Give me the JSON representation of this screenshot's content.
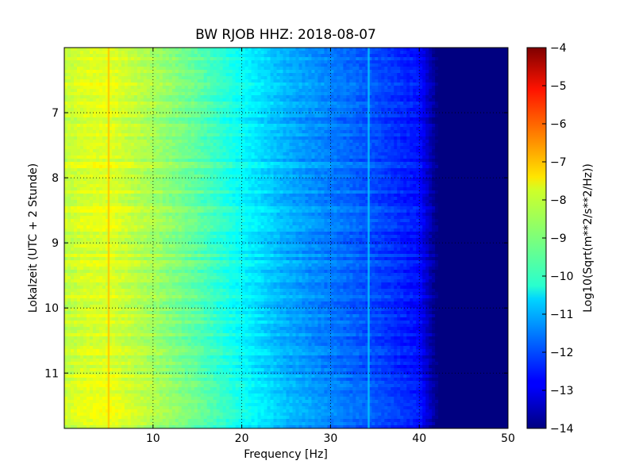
{
  "chart_data": {
    "type": "heatmap",
    "title": "BW RJOB HHZ: 2018-08-07",
    "xlabel": "Frequency [Hz]",
    "ylabel": "Lokalzeit (UTC + 2 Stunde)",
    "colorbar_label": "Log10(Sqrt(m**2/s**2/Hz))",
    "xlim": [
      0,
      50
    ],
    "ylim": [
      6.0,
      11.85
    ],
    "y_inverted": true,
    "x_ticks": [
      10,
      20,
      30,
      40,
      50
    ],
    "y_ticks": [
      7,
      8,
      9,
      10,
      11
    ],
    "colorbar_range": [
      -14,
      -4
    ],
    "colorbar_ticks": [
      -4,
      -5,
      -6,
      -7,
      -8,
      -9,
      -10,
      -11,
      -12,
      -13,
      -14
    ],
    "colormap": "jet",
    "grid": true,
    "grid_style": "dotted",
    "spectral_profile": [
      {
        "freq_hz": 0.5,
        "log10_amp": -8.3
      },
      {
        "freq_hz": 2,
        "log10_amp": -8.1
      },
      {
        "freq_hz": 5,
        "log10_amp": -8.0
      },
      {
        "freq_hz": 10,
        "log10_amp": -8.6
      },
      {
        "freq_hz": 15,
        "log10_amp": -9.3
      },
      {
        "freq_hz": 20,
        "log10_amp": -10.2
      },
      {
        "freq_hz": 25,
        "log10_amp": -11.0
      },
      {
        "freq_hz": 30,
        "log10_amp": -11.5
      },
      {
        "freq_hz": 35,
        "log10_amp": -12.0
      },
      {
        "freq_hz": 40,
        "log10_amp": -12.6
      },
      {
        "freq_hz": 42,
        "log10_amp": -14.0
      },
      {
        "freq_hz": 50,
        "log10_amp": -14.0
      }
    ],
    "spectral_lines": [
      {
        "freq_hz": 5.0,
        "log10_amp": -7.2
      },
      {
        "freq_hz": 34.3,
        "log10_amp": -10.8
      }
    ]
  }
}
